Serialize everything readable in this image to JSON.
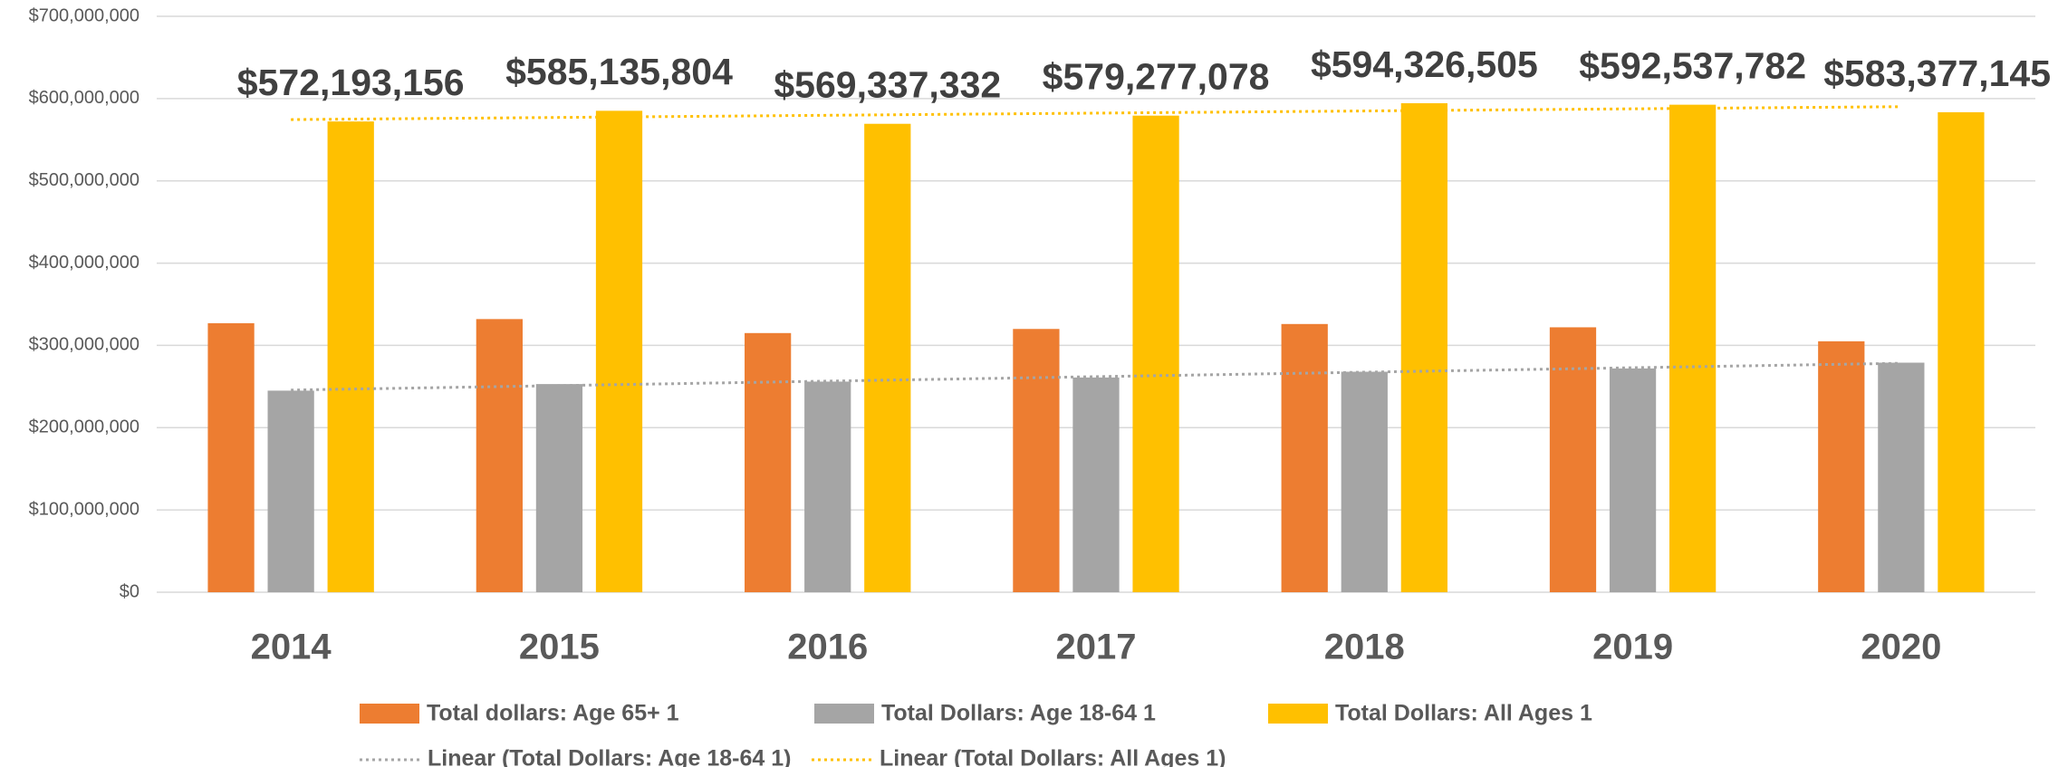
{
  "chart_data": {
    "type": "bar",
    "categories": [
      "2014",
      "2015",
      "2016",
      "2017",
      "2018",
      "2019",
      "2020"
    ],
    "series": [
      {
        "name": "Total dollars: Age 65+ 1",
        "color": "#ED7D31",
        "values": [
          327000000,
          332000000,
          315000000,
          320000000,
          326000000,
          322000000,
          305000000
        ]
      },
      {
        "name": "Total Dollars: Age 18-64 1",
        "color": "#A5A5A5",
        "values": [
          245000000,
          253000000,
          256000000,
          261000000,
          268000000,
          272000000,
          279000000
        ]
      },
      {
        "name": "Total Dollars: All Ages 1",
        "color": "#FFC000",
        "values": [
          572193156,
          585135804,
          569337332,
          579277078,
          594326505,
          592537782,
          583377145
        ],
        "value_labels": [
          "$572,193,156",
          "$585,135,804",
          "$569,337,332",
          "$579,277,078",
          "$594,326,505",
          "$592,537,782",
          "$583,377,145"
        ]
      }
    ],
    "trendlines": [
      {
        "name": "Linear (Total Dollars: Age 18-64 1)",
        "series": 1,
        "color": "#A5A5A5"
      },
      {
        "name": "Linear (Total Dollars: All Ages 1)",
        "series": 2,
        "color": "#FFC000"
      }
    ],
    "ylim": [
      0,
      700000000
    ],
    "yticks": [
      {
        "value": 0,
        "label": "$0"
      },
      {
        "value": 100000000,
        "label": "$100,000,000"
      },
      {
        "value": 200000000,
        "label": "$200,000,000"
      },
      {
        "value": 300000000,
        "label": "$300,000,000"
      },
      {
        "value": 400000000,
        "label": "$400,000,000"
      },
      {
        "value": 500000000,
        "label": "$500,000,000"
      },
      {
        "value": 600000000,
        "label": "$600,000,000"
      },
      {
        "value": 700000000,
        "label": "$700,000,000"
      }
    ],
    "grid": true
  }
}
